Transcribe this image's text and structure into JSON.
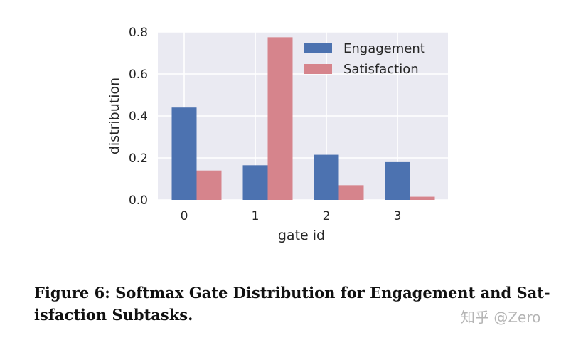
{
  "chart_data": {
    "type": "bar",
    "categories": [
      "0",
      "1",
      "2",
      "3"
    ],
    "series": [
      {
        "name": "Engagement",
        "color": "#4c72b0",
        "values": [
          0.44,
          0.165,
          0.215,
          0.18
        ]
      },
      {
        "name": "Satisfaction",
        "color": "#dd8452",
        "values": [
          0.14,
          0.775,
          0.07,
          0.015
        ]
      }
    ],
    "series_colors": [
      "#4c72b0",
      "#d6848c"
    ],
    "xlabel": "gate id",
    "ylabel": "distribution",
    "ylim": [
      0,
      0.8
    ],
    "yticks": [
      "0.0",
      "0.2",
      "0.4",
      "0.6",
      "0.8"
    ],
    "legend": "top-right",
    "grid": true,
    "background": "#eaeaf2"
  },
  "caption": {
    "line1": "Figure 6: Softmax Gate Distribution for Engagement and Sat-",
    "line2": "isfaction Subtasks."
  },
  "watermark": "知乎 @Zero"
}
